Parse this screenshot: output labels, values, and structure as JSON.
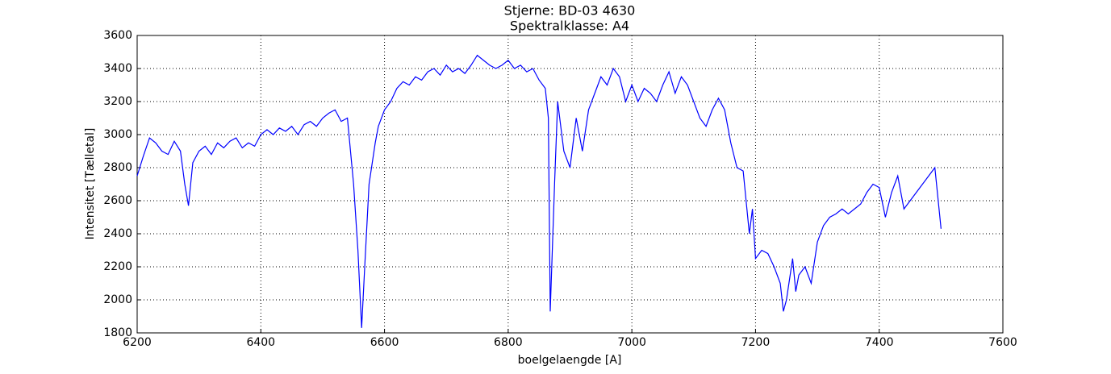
{
  "chart_data": {
    "type": "line",
    "title": "Stjerne: BD-03 4630",
    "subtitle": "Spektralklasse: A4",
    "x_label": "boelgelaengde [A]",
    "y_label": "Intensitet [Tælletal]",
    "xlim": [
      6200,
      7600
    ],
    "xticks": [
      6200,
      6400,
      6600,
      6800,
      7000,
      7200,
      7400,
      7600
    ],
    "ylim": [
      1800,
      3600
    ],
    "yticks": [
      1800,
      2000,
      2200,
      2400,
      2600,
      2800,
      3000,
      3200,
      3400,
      3600
    ],
    "grid": true,
    "series": [
      {
        "color": "#0000ff",
        "x": [
          6200,
          6210,
          6220,
          6230,
          6240,
          6250,
          6260,
          6270,
          6277,
          6283,
          6290,
          6300,
          6310,
          6320,
          6330,
          6340,
          6350,
          6360,
          6370,
          6380,
          6390,
          6400,
          6410,
          6420,
          6430,
          6440,
          6450,
          6460,
          6470,
          6480,
          6490,
          6500,
          6510,
          6520,
          6530,
          6540,
          6545,
          6550,
          6557,
          6563,
          6568,
          6575,
          6585,
          6590,
          6600,
          6610,
          6620,
          6630,
          6640,
          6650,
          6660,
          6670,
          6680,
          6690,
          6700,
          6710,
          6720,
          6730,
          6740,
          6750,
          6760,
          6770,
          6780,
          6790,
          6800,
          6810,
          6820,
          6830,
          6840,
          6850,
          6860,
          6865,
          6868,
          6875,
          6880,
          6890,
          6900,
          6910,
          6920,
          6930,
          6940,
          6950,
          6960,
          6970,
          6980,
          6990,
          7000,
          7010,
          7020,
          7030,
          7040,
          7050,
          7060,
          7070,
          7080,
          7090,
          7100,
          7110,
          7120,
          7130,
          7140,
          7150,
          7160,
          7170,
          7180,
          7190,
          7195,
          7200,
          7210,
          7220,
          7230,
          7240,
          7245,
          7250,
          7260,
          7265,
          7270,
          7280,
          7290,
          7300,
          7310,
          7320,
          7330,
          7340,
          7350,
          7360,
          7370,
          7380,
          7390,
          7400,
          7410,
          7420,
          7430,
          7440,
          7450,
          7460,
          7470,
          7480,
          7490,
          7500
        ],
        "values": [
          2750,
          2870,
          2980,
          2950,
          2900,
          2880,
          2960,
          2900,
          2700,
          2570,
          2830,
          2900,
          2930,
          2880,
          2950,
          2920,
          2960,
          2980,
          2920,
          2950,
          2930,
          3000,
          3030,
          3000,
          3040,
          3020,
          3050,
          3000,
          3060,
          3080,
          3050,
          3100,
          3130,
          3150,
          3080,
          3100,
          2900,
          2700,
          2300,
          1830,
          2200,
          2700,
          2950,
          3050,
          3150,
          3200,
          3280,
          3320,
          3300,
          3350,
          3330,
          3380,
          3400,
          3360,
          3420,
          3380,
          3400,
          3370,
          3420,
          3480,
          3450,
          3420,
          3400,
          3420,
          3450,
          3400,
          3420,
          3380,
          3400,
          3330,
          3280,
          3100,
          1930,
          2700,
          3200,
          2900,
          2800,
          3100,
          2900,
          3150,
          3250,
          3350,
          3300,
          3400,
          3350,
          3200,
          3300,
          3200,
          3280,
          3250,
          3200,
          3300,
          3380,
          3250,
          3350,
          3300,
          3200,
          3100,
          3050,
          3150,
          3220,
          3150,
          2950,
          2800,
          2780,
          2400,
          2550,
          2250,
          2300,
          2280,
          2200,
          2100,
          1930,
          2000,
          2250,
          2050,
          2150,
          2200,
          2100,
          2350,
          2450,
          2500,
          2520,
          2550,
          2520,
          2550,
          2580,
          2650,
          2700,
          2680,
          2500,
          2650,
          2750,
          2550,
          2600,
          2650,
          2700,
          2750,
          2800,
          2430
        ]
      }
    ]
  }
}
